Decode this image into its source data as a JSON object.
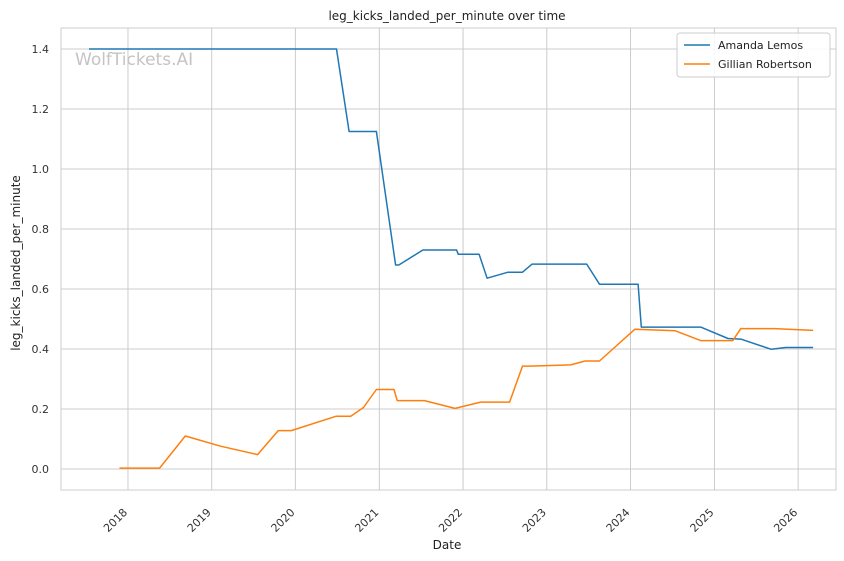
{
  "chart_data": {
    "type": "line",
    "title": "leg_kicks_landed_per_minute over time",
    "xlabel": "Date",
    "ylabel": "leg_kicks_landed_per_minute",
    "watermark": "WolfTickets.AI",
    "x_ticks": [
      "2018",
      "2019",
      "2020",
      "2021",
      "2022",
      "2023",
      "2024",
      "2025",
      "2026"
    ],
    "y_ticks": [
      "0.0",
      "0.2",
      "0.4",
      "0.6",
      "0.8",
      "1.0",
      "1.2",
      "1.4"
    ],
    "xlim": [
      "2017-03-15",
      "2026-06-15"
    ],
    "ylim": [
      -0.07,
      1.47
    ],
    "grid": true,
    "legend_position": "top-right",
    "series": [
      {
        "name": "Amanda Lemos",
        "color": "#1f77b4",
        "points": [
          [
            "2017-07-15",
            1.4
          ],
          [
            "2020-06-28",
            1.4
          ],
          [
            "2020-08-22",
            1.125
          ],
          [
            "2020-12-19",
            1.125
          ],
          [
            "2021-03-13",
            0.68
          ],
          [
            "2021-03-27",
            0.68
          ],
          [
            "2021-07-10",
            0.73
          ],
          [
            "2021-12-04",
            0.73
          ],
          [
            "2021-12-11",
            0.716
          ],
          [
            "2022-03-12",
            0.716
          ],
          [
            "2022-04-16",
            0.636
          ],
          [
            "2022-07-16",
            0.656
          ],
          [
            "2022-09-17",
            0.656
          ],
          [
            "2022-10-29",
            0.683
          ],
          [
            "2023-06-24",
            0.683
          ],
          [
            "2023-08-19",
            0.616
          ],
          [
            "2024-02-03",
            0.616
          ],
          [
            "2024-02-17",
            0.473
          ],
          [
            "2024-11-02",
            0.473
          ],
          [
            "2025-03-01",
            0.435
          ],
          [
            "2025-04-26",
            0.433
          ],
          [
            "2025-09-06",
            0.399
          ],
          [
            "2025-11-08",
            0.405
          ],
          [
            "2026-03-07",
            0.405
          ]
        ]
      },
      {
        "name": "Gillian Robertson",
        "color": "#ff7f0e",
        "points": [
          [
            "2017-11-25",
            0.003
          ],
          [
            "2018-05-19",
            0.003
          ],
          [
            "2018-09-08",
            0.11
          ],
          [
            "2019-02-09",
            0.076
          ],
          [
            "2019-07-20",
            0.048
          ],
          [
            "2019-10-18",
            0.128
          ],
          [
            "2019-12-14",
            0.128
          ],
          [
            "2020-06-27",
            0.176
          ],
          [
            "2020-08-29",
            0.176
          ],
          [
            "2020-10-24",
            0.205
          ],
          [
            "2020-12-19",
            0.265
          ],
          [
            "2021-03-06",
            0.265
          ],
          [
            "2021-03-20",
            0.228
          ],
          [
            "2021-07-17",
            0.228
          ],
          [
            "2021-11-27",
            0.202
          ],
          [
            "2022-03-19",
            0.223
          ],
          [
            "2022-07-23",
            0.223
          ],
          [
            "2022-09-17",
            0.343
          ],
          [
            "2022-10-22",
            0.343
          ],
          [
            "2023-04-15",
            0.347
          ],
          [
            "2023-06-17",
            0.36
          ],
          [
            "2023-08-19",
            0.36
          ],
          [
            "2024-01-20",
            0.466
          ],
          [
            "2024-07-13",
            0.461
          ],
          [
            "2024-11-02",
            0.428
          ],
          [
            "2025-03-22",
            0.428
          ],
          [
            "2025-04-26",
            0.468
          ],
          [
            "2025-09-20",
            0.468
          ],
          [
            "2026-03-07",
            0.462
          ]
        ]
      }
    ]
  }
}
